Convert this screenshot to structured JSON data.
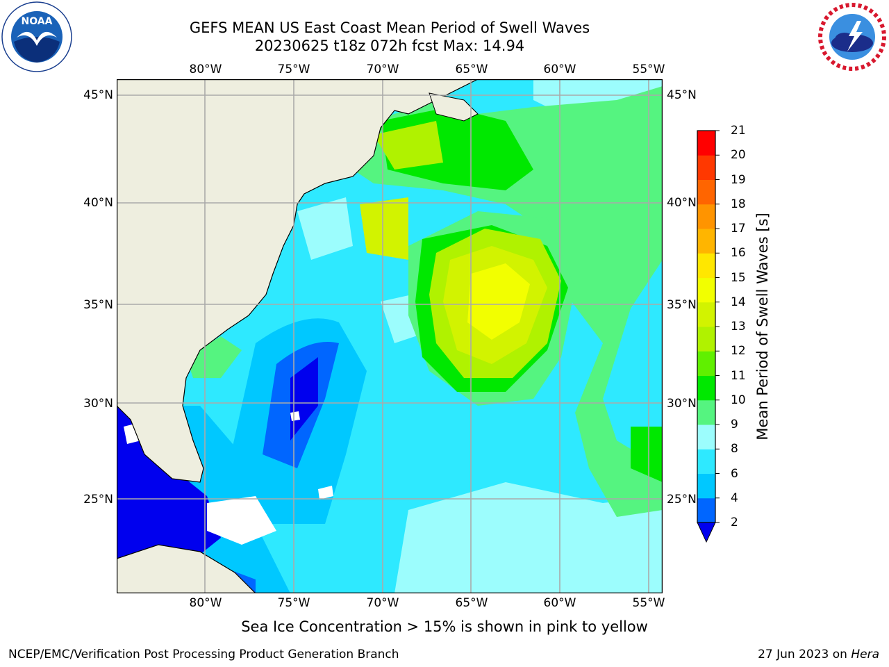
{
  "title": {
    "line1": "GEFS MEAN US East Coast Mean Period of Swell Waves",
    "line2": "20230625 t18z 072h fcst   Max: 14.94"
  },
  "logos": {
    "left": "noaa-logo",
    "left_text": "NOAA",
    "right": "nws-logo"
  },
  "map": {
    "type": "filled-contour",
    "projection": "cylindrical",
    "lon_range": [
      -85,
      -54
    ],
    "lat_range": [
      20.5,
      46.3
    ],
    "grid": true,
    "land_color": "#eeeedf",
    "lon_ticks": [
      "80°W",
      "75°W",
      "70°W",
      "65°W",
      "60°W",
      "55°W"
    ],
    "lat_ticks": [
      "45°N",
      "40°N",
      "35°N",
      "30°N",
      "25°N"
    ]
  },
  "colorbar": {
    "label": "Mean Period of Swell Waves [s]",
    "ticks": [
      "2",
      "4",
      "6",
      "8",
      "9",
      "10",
      "11",
      "12",
      "13",
      "14",
      "15",
      "16",
      "17",
      "18",
      "19",
      "20",
      "21"
    ],
    "colors": [
      "#0066ff",
      "#00c8ff",
      "#2ee9ff",
      "#9cfdfd",
      "#55f480",
      "#00e800",
      "#60f000",
      "#b0f200",
      "#d2f300",
      "#f2ff00",
      "#ffe700",
      "#ffb500",
      "#ff9400",
      "#ff6500",
      "#ff3800",
      "#ff0000"
    ],
    "extend_color": "#0000ee",
    "extend": "min"
  },
  "chart_data": {
    "type": "heatmap",
    "variable": "Mean Period of Swell Waves",
    "units": "s",
    "max": 14.94,
    "levels": [
      2,
      4,
      6,
      8,
      9,
      10,
      11,
      12,
      13,
      14,
      15,
      16,
      17,
      18,
      19,
      20,
      21
    ]
  },
  "note": "Sea Ice Concentration > 15% is shown in pink to yellow",
  "footer": {
    "left": "NCEP/EMC/Verification Post Processing Product Generation Branch",
    "right_date": "27 Jun 2023 on ",
    "right_host": "Hera"
  }
}
